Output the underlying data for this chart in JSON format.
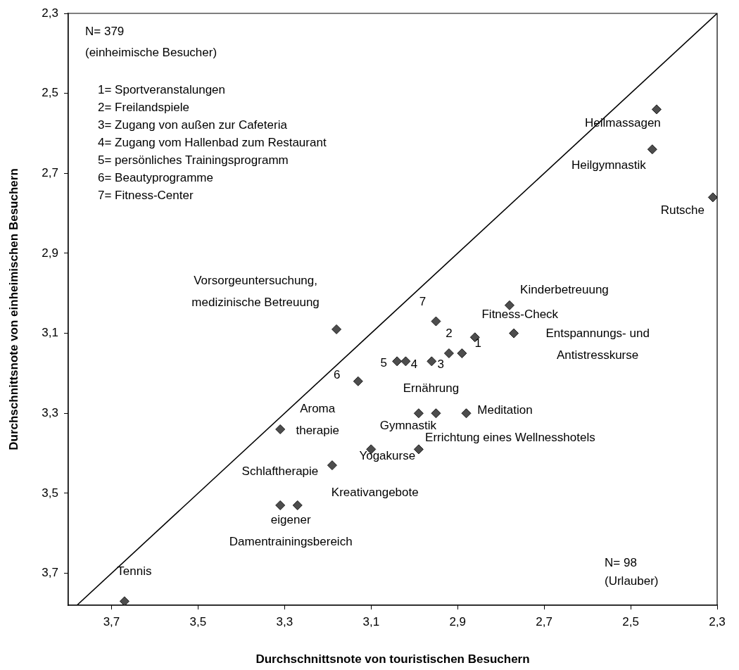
{
  "chart_data": {
    "type": "scatter",
    "xlabel": "Durchschnittsnote von touristischen Besuchern",
    "ylabel": "Durchschnittsnote von einheimischen Besuchern",
    "xlim": [
      3.8,
      2.3
    ],
    "ylim": [
      3.78,
      2.3
    ],
    "xticks": [
      {
        "value": 3.7,
        "label": "3,7"
      },
      {
        "value": 3.5,
        "label": "3,5"
      },
      {
        "value": 3.3,
        "label": "3,3"
      },
      {
        "value": 3.1,
        "label": "3,1"
      },
      {
        "value": 2.9,
        "label": "2,9"
      },
      {
        "value": 2.7,
        "label": "2,7"
      },
      {
        "value": 2.5,
        "label": "2,5"
      },
      {
        "value": 2.3,
        "label": "2,3"
      }
    ],
    "yticks": [
      {
        "value": 2.3,
        "label": "2,3"
      },
      {
        "value": 2.5,
        "label": "2,5"
      },
      {
        "value": 2.7,
        "label": "2,7"
      },
      {
        "value": 2.9,
        "label": "2,9"
      },
      {
        "value": 3.1,
        "label": "3,1"
      },
      {
        "value": 3.3,
        "label": "3,3"
      },
      {
        "value": 3.5,
        "label": "3,5"
      },
      {
        "value": 3.7,
        "label": "3,7"
      }
    ],
    "grid": false,
    "legend": false,
    "series": [
      {
        "type": "scatter",
        "color": "#4d4d4d",
        "marker": "diamond",
        "x": [
          2.89,
          2.92,
          2.96,
          3.02,
          3.04,
          3.13,
          2.95,
          3.18,
          2.86,
          2.78,
          2.77,
          2.95,
          2.99,
          2.88,
          3.31,
          3.1,
          2.99,
          3.19,
          3.31,
          3.27,
          2.44,
          2.45,
          2.31,
          3.67
        ],
        "values": [
          3.15,
          3.15,
          3.17,
          3.17,
          3.17,
          3.22,
          3.07,
          3.09,
          3.11,
          3.03,
          3.1,
          3.3,
          3.3,
          3.3,
          3.34,
          3.39,
          3.39,
          3.43,
          3.53,
          3.53,
          2.54,
          2.64,
          2.76,
          3.77
        ]
      },
      {
        "type": "line",
        "color": "#000000",
        "marker": "none",
        "x": [
          3.78,
          2.3
        ],
        "values": [
          3.78,
          2.3
        ]
      }
    ],
    "annotations": [
      {
        "text": "1",
        "x": 2.89,
        "y": 3.15
      },
      {
        "text": "2",
        "x": 2.92,
        "y": 3.15
      },
      {
        "text": "3",
        "x": 2.96,
        "y": 3.17
      },
      {
        "text": "4",
        "x": 3.02,
        "y": 3.17
      },
      {
        "text": "5",
        "x": 3.04,
        "y": 3.17
      },
      {
        "text": "6",
        "x": 3.13,
        "y": 3.22
      },
      {
        "text": "7",
        "x": 2.95,
        "y": 3.07
      },
      {
        "text": "Vorsorgeuntersuchung,\nmedizinische Betreuung",
        "x": 3.18,
        "y": 3.09
      },
      {
        "text": "Fitness-Check",
        "x": 2.86,
        "y": 3.11
      },
      {
        "text": "Kinderbetreuung",
        "x": 2.78,
        "y": 3.03
      },
      {
        "text": "Entspannungs- und\nAntistresskurse",
        "x": 2.77,
        "y": 3.1
      },
      {
        "text": "Ernährung",
        "x": 2.95,
        "y": 3.3
      },
      {
        "text": "Gymnastik",
        "x": 2.99,
        "y": 3.3
      },
      {
        "text": "Meditation",
        "x": 2.88,
        "y": 3.3
      },
      {
        "text": "Aroma\ntherapie",
        "x": 3.31,
        "y": 3.34
      },
      {
        "text": "Yogakurse",
        "x": 3.1,
        "y": 3.39
      },
      {
        "text": "Errichtung eines Wellnesshotels",
        "x": 2.99,
        "y": 3.39
      },
      {
        "text": "Schlaftherapie",
        "x": 3.19,
        "y": 3.43
      },
      {
        "text": "eigener\nDamentrainingsbereich",
        "x": 3.31,
        "y": 3.53
      },
      {
        "text": "Kreativangebote",
        "x": 3.27,
        "y": 3.53
      },
      {
        "text": "Heilmassagen",
        "x": 2.44,
        "y": 2.54
      },
      {
        "text": "Heilgymnastik",
        "x": 2.45,
        "y": 2.64
      },
      {
        "text": "Rutsche",
        "x": 2.31,
        "y": 2.76
      },
      {
        "text": "Tennis",
        "x": 3.67,
        "y": 3.77
      },
      "N= 379\n(einheimische Besucher)",
      "1= Sportveranstalungen\n2= Freilandspiele\n3= Zugang von außen zur Cafeteria\n4= Zugang vom Hallenbad zum Restaurant\n5= persönliches Trainingsprogramm\n6= Beautyprogramme\n7= Fitness-Center",
      "N= 98\n(Urlauber)"
    ]
  }
}
